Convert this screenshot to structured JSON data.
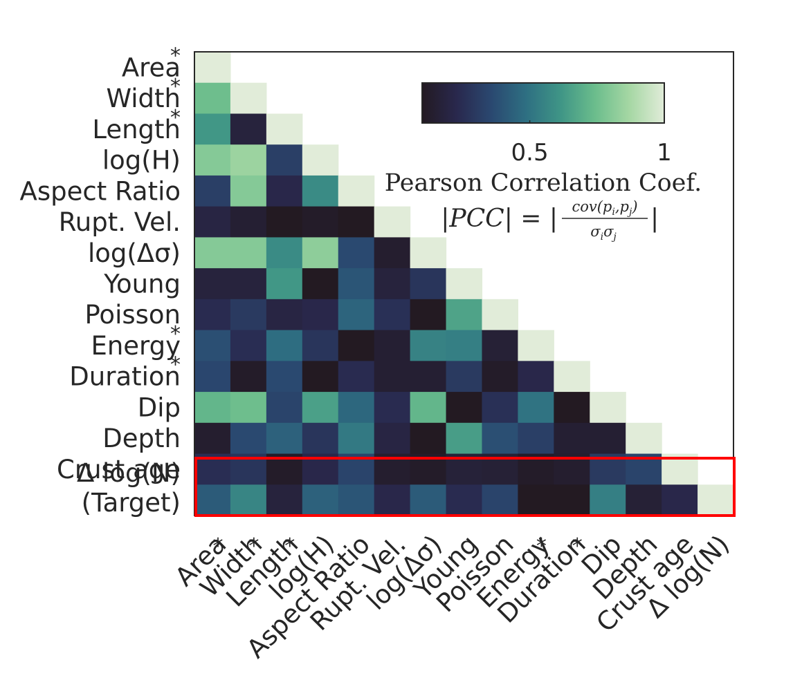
{
  "chart_data": {
    "type": "heatmap",
    "title": "",
    "rows": [
      "Area",
      "Width",
      "Length",
      "log(H)",
      "Aspect Ratio",
      "Rupt. Vel.",
      "log(Δσ)",
      "Young",
      "Poisson",
      "Energy",
      "Duration",
      "Dip",
      "Depth",
      "Crust age",
      "Δ log(N)"
    ],
    "row_labels": [
      "Area",
      "Width",
      "Length",
      "log(H)",
      "Aspect Ratio",
      "Rupt. Vel.",
      "log(Δσ)",
      "Young",
      "Poisson",
      "Energy",
      "Duration",
      "Dip",
      "Depth",
      "Crust age",
      "Δ log(N)",
      "(Target)"
    ],
    "col_labels": [
      "Area",
      "Width",
      "Length",
      "log(H)",
      "Aspect Ratio",
      "Rupt. Vel.",
      "log(Δσ)",
      "Young",
      "Poisson",
      "Energy",
      "Duration",
      "Dip",
      "Depth",
      "Crust age",
      "Δ log(N)"
    ],
    "starred": [
      "Area",
      "Width",
      "Length",
      "Energy",
      "Duration"
    ],
    "star_symbol": "*",
    "matrix": [
      [
        1.0
      ],
      [
        0.75,
        1.0
      ],
      [
        0.62,
        0.18,
        1.0
      ],
      [
        0.8,
        0.85,
        0.32,
        1.0
      ],
      [
        0.32,
        0.8,
        0.22,
        0.58,
        1.0
      ],
      [
        0.2,
        0.15,
        0.1,
        0.12,
        0.1,
        1.0
      ],
      [
        0.8,
        0.8,
        0.58,
        0.82,
        0.36,
        0.14,
        1.0
      ],
      [
        0.18,
        0.18,
        0.62,
        0.08,
        0.4,
        0.18,
        0.28,
        1.0
      ],
      [
        0.24,
        0.3,
        0.2,
        0.22,
        0.45,
        0.26,
        0.1,
        0.66,
        1.0
      ],
      [
        0.38,
        0.25,
        0.48,
        0.28,
        0.1,
        0.15,
        0.55,
        0.54,
        0.16,
        1.0
      ],
      [
        0.35,
        0.12,
        0.36,
        0.1,
        0.24,
        0.15,
        0.15,
        0.3,
        0.12,
        0.22,
        1.0
      ],
      [
        0.72,
        0.75,
        0.34,
        0.65,
        0.46,
        0.24,
        0.72,
        0.08,
        0.26,
        0.5,
        0.1,
        1.0
      ],
      [
        0.14,
        0.36,
        0.44,
        0.28,
        0.52,
        0.2,
        0.08,
        0.64,
        0.38,
        0.32,
        0.15,
        0.15,
        1.0
      ],
      [
        0.25,
        0.28,
        0.12,
        0.22,
        0.34,
        0.14,
        0.12,
        0.17,
        0.16,
        0.12,
        0.14,
        0.3,
        0.34,
        1.0
      ],
      [
        0.42,
        0.56,
        0.18,
        0.44,
        0.4,
        0.22,
        0.42,
        0.24,
        0.34,
        0.08,
        0.08,
        0.54,
        0.16,
        0.22,
        1.0
      ]
    ],
    "colorbar": {
      "ticks": [
        0.5,
        1
      ],
      "tick_labels": [
        "0.5",
        "1"
      ],
      "label": "Pearson Correlation Coef.",
      "formula_lhs": "|PCC| = |",
      "formula_num": "cov(p",
      "formula_num_sub_i": "i",
      "formula_num_sep": ",p",
      "formula_num_sub_j": "j",
      "formula_num_close": ")",
      "formula_den": "σ",
      "formula_den_sub_i": "i",
      "formula_den_mid": "σ",
      "formula_den_sub_j": "j",
      "formula_rhs": "|",
      "range": [
        0.1,
        1.0
      ],
      "colors": [
        "#231a22",
        "#29284d",
        "#2a4870",
        "#2e6f82",
        "#3f9586",
        "#6bbd8c",
        "#a6d7a4",
        "#e1ecd9"
      ]
    },
    "highlight_row": "Δ log(N)",
    "highlight_color": "#ff0000",
    "grid": false,
    "legend": "colorbar top-right"
  }
}
